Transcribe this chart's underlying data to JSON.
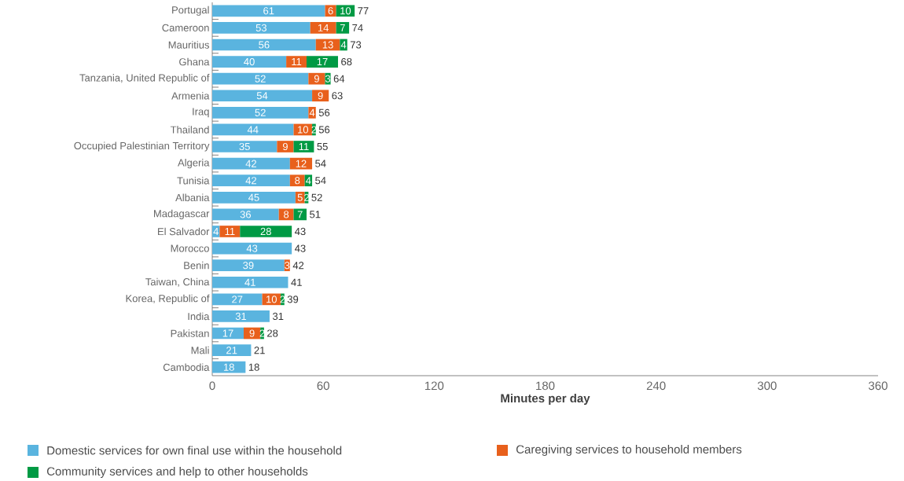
{
  "chart_data": {
    "type": "bar",
    "orientation": "horizontal",
    "stacked": true,
    "xlabel": "Minutes per day",
    "categories": [
      "Portugal",
      "Cameroon",
      "Mauritius",
      "Ghana",
      "Tanzania, United Republic of",
      "Armenia",
      "Iraq",
      "Thailand",
      "Occupied Palestinian Territory",
      "Algeria",
      "Tunisia",
      "Albania",
      "Madagascar",
      "El Salvador",
      "Morocco",
      "Benin",
      "Taiwan, China",
      "Korea, Republic of",
      "India",
      "Pakistan",
      "Mali",
      "Cambodia"
    ],
    "series": [
      {
        "name": "Domestic services for own final use within the household",
        "color": "#5ab4df",
        "values": [
          61,
          53,
          56,
          40,
          52,
          54,
          52,
          44,
          35,
          42,
          42,
          45,
          36,
          4,
          43,
          39,
          41,
          27,
          31,
          17,
          21,
          18
        ]
      },
      {
        "name": "Caregiving services to household members",
        "color": "#e8601c",
        "values": [
          6,
          14,
          13,
          11,
          9,
          9,
          4,
          10,
          9,
          12,
          8,
          5,
          8,
          11,
          null,
          3,
          null,
          10,
          null,
          9,
          null,
          null
        ]
      },
      {
        "name": "Community services and help to other households",
        "color": "#009a44",
        "values": [
          10,
          7,
          4,
          17,
          3,
          null,
          null,
          2,
          11,
          null,
          4,
          2,
          7,
          28,
          null,
          null,
          null,
          2,
          null,
          2,
          null,
          null
        ]
      }
    ],
    "totals": [
      "77",
      "74",
      "73",
      "68",
      "64",
      "63",
      "56",
      "56",
      "55",
      "54",
      "54",
      "52",
      "51",
      "43",
      "43",
      "42",
      "41",
      "39",
      "31",
      "28",
      "21",
      "18"
    ],
    "data_labels": true,
    "xlim": [
      0,
      360
    ],
    "xticks": [
      0,
      60,
      120,
      180,
      240,
      300,
      360
    ],
    "grid": false,
    "legend": "bottom"
  }
}
